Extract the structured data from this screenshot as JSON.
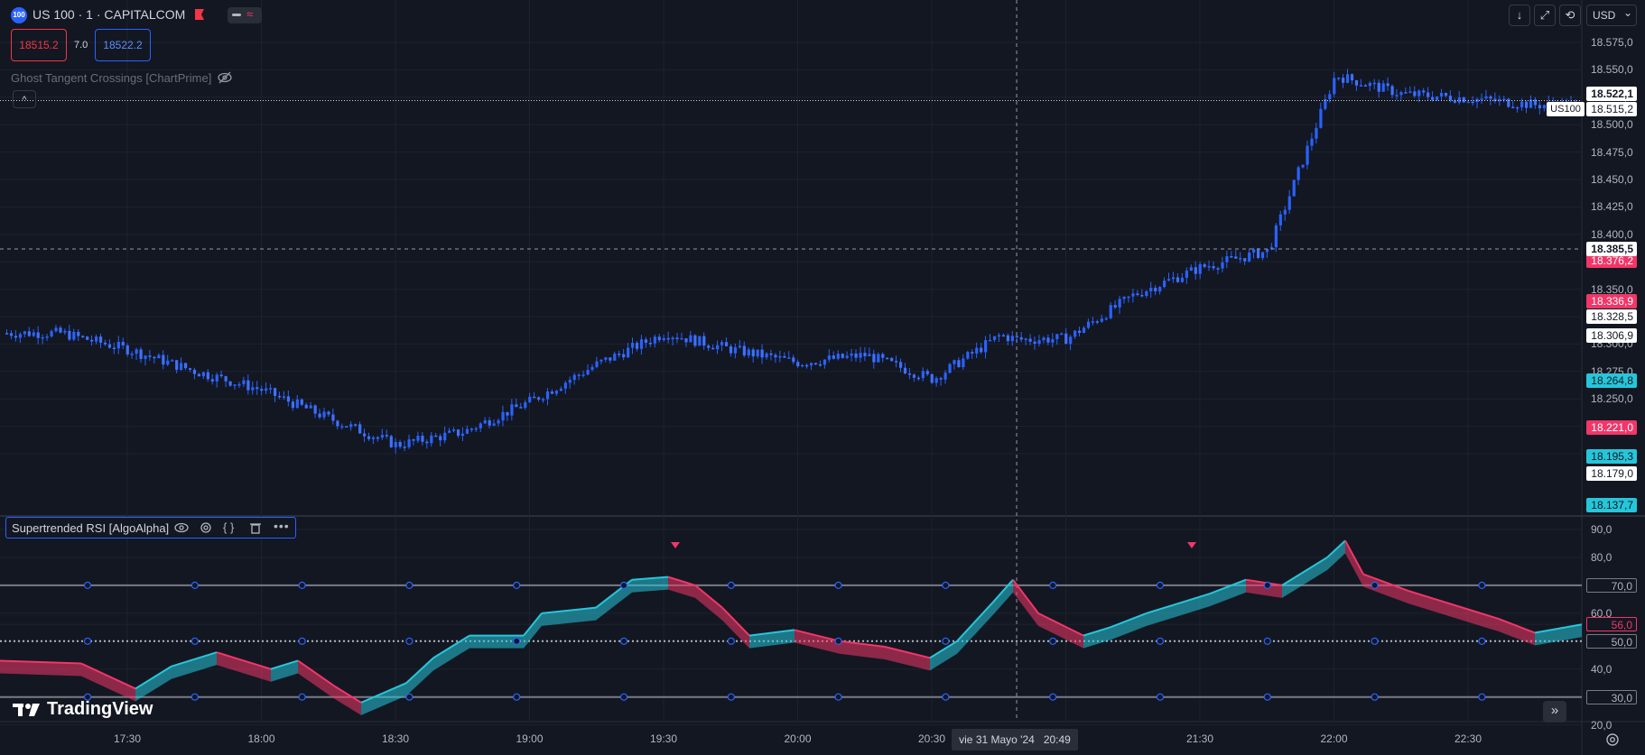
{
  "symbol": {
    "badge": "100",
    "title": "US 100 · 1 · CAPITALCOM",
    "sell_price": "18515.2",
    "spread": "7.0",
    "buy_price": "18522.2"
  },
  "indicators": {
    "ghost_label": "Ghost Tangent Crossings [ChartPrime]",
    "rsi_label": "Supertrended RSI [AlgoAlpha]"
  },
  "top_controls": {
    "currency": "USD",
    "currency_caret": "⌄",
    "down_icon": "↓",
    "expand_icon": "⤢",
    "restore_icon": "⟲"
  },
  "price_axis": {
    "labels": [
      "18.575,0",
      "18.550,0",
      "18.525,0",
      "18.500,0",
      "18.475,0",
      "18.450,0",
      "18.425,0",
      "18.400,0",
      "18.375,0",
      "18.350,0",
      "18.325,0",
      "18.300,0",
      "18.275,0",
      "18.250,0",
      "18.225,0",
      "18.200,0"
    ],
    "tags": {
      "last": "18.522,1",
      "us100_label": "US100",
      "us100_value": "18.515,2",
      "crosshair": "18.385,5",
      "t_376": "18.376,2",
      "t_336": "18.336,9",
      "t_328": "18.328,5",
      "t_306": "18.306,9",
      "t_264": "18.264,8",
      "t_221": "18.221,0",
      "t_195": "18.195,3",
      "t_179": "18.179,0",
      "t_137": "18.137,7"
    }
  },
  "rsi_axis": {
    "labels": [
      "90,0",
      "80,0",
      "70,0",
      "60,0",
      "56,0",
      "50,0",
      "40,0",
      "30,0",
      "20,0"
    ]
  },
  "time_axis": {
    "labels": [
      "17:30",
      "18:00",
      "18:30",
      "19:00",
      "19:30",
      "20:00",
      "20:30",
      "21:30",
      "22:00",
      "22:30"
    ],
    "crosshair_date": "vie 31 Mayo '24",
    "crosshair_time": "20:49"
  },
  "branding": {
    "name": "TradingView"
  },
  "colors": {
    "background": "#131722",
    "bull": "#2962ff",
    "rsi_up": "#26c6da",
    "rsi_down": "#f23668",
    "grid": "#1e222d"
  },
  "chart_data": {
    "type": "line",
    "price": {
      "series_name": "US100",
      "ylim": [
        18130,
        18590
      ],
      "x_times": [
        "17:15",
        "17:30",
        "17:45",
        "18:00",
        "18:15",
        "18:30",
        "18:45",
        "19:00",
        "19:15",
        "19:30",
        "19:45",
        "20:00",
        "20:15",
        "20:30",
        "20:45",
        "20:49",
        "21:00",
        "21:15",
        "21:30",
        "21:45",
        "22:00",
        "22:15",
        "22:30",
        "22:45"
      ],
      "close": [
        18310,
        18295,
        18275,
        18258,
        18232,
        18208,
        18220,
        18248,
        18282,
        18310,
        18295,
        18283,
        18290,
        18268,
        18308,
        18304,
        18305,
        18345,
        18370,
        18385,
        18545,
        18528,
        18524,
        18518
      ]
    },
    "rsi": {
      "ylim": [
        20,
        90
      ],
      "levels": [
        30,
        50,
        70
      ],
      "current": 56.0
    }
  }
}
